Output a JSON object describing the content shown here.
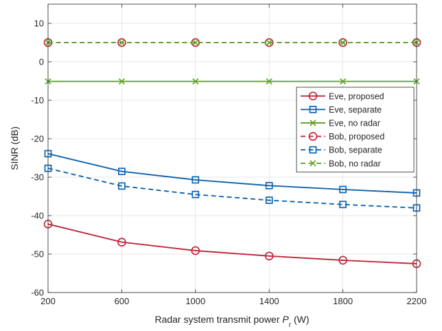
{
  "chart_data": {
    "type": "line",
    "title": "",
    "xlabel_prefix": "Radar system transmit power ",
    "xlabel_symbol": "P",
    "xlabel_subscript": "r",
    "xlabel_suffix": " (W)",
    "ylabel": "SINR (dB)",
    "x": [
      200,
      600,
      1000,
      1400,
      1800,
      2200
    ],
    "xlim": [
      200,
      2200
    ],
    "ylim": [
      -60,
      15
    ],
    "xticks": [
      200,
      600,
      1000,
      1400,
      1800,
      2200
    ],
    "yticks": [
      -60,
      -50,
      -40,
      -30,
      -20,
      -10,
      0,
      10
    ],
    "grid": true,
    "legend_position": "right",
    "series": [
      {
        "name": "Eve, proposed",
        "values": [
          -42.2,
          -46.9,
          -49.1,
          -50.5,
          -51.6,
          -52.5
        ],
        "color": "#c0283c",
        "dash": "solid",
        "marker": "circle"
      },
      {
        "name": "Eve, separate",
        "values": [
          -23.9,
          -28.5,
          -30.7,
          -32.2,
          -33.2,
          -34.1
        ],
        "color": "#0f64b0",
        "dash": "solid",
        "marker": "square"
      },
      {
        "name": "Eve, no radar",
        "values": [
          -5.1,
          -5.1,
          -5.1,
          -5.1,
          -5.1,
          -5.1
        ],
        "color": "#62a22c",
        "dash": "solid",
        "marker": "x"
      },
      {
        "name": "Bob, proposed",
        "values": [
          5.0,
          5.0,
          5.0,
          5.0,
          5.0,
          5.0
        ],
        "color": "#c0283c",
        "dash": "dashed",
        "marker": "circle"
      },
      {
        "name": "Bob, separate",
        "values": [
          -27.7,
          -32.3,
          -34.5,
          -36.0,
          -37.1,
          -38.0
        ],
        "color": "#0f64b0",
        "dash": "dashed",
        "marker": "square"
      },
      {
        "name": "Bob, no radar",
        "values": [
          5.0,
          5.0,
          5.0,
          5.0,
          5.0,
          5.0
        ],
        "color": "#62a22c",
        "dash": "dashed",
        "marker": "x"
      }
    ]
  }
}
